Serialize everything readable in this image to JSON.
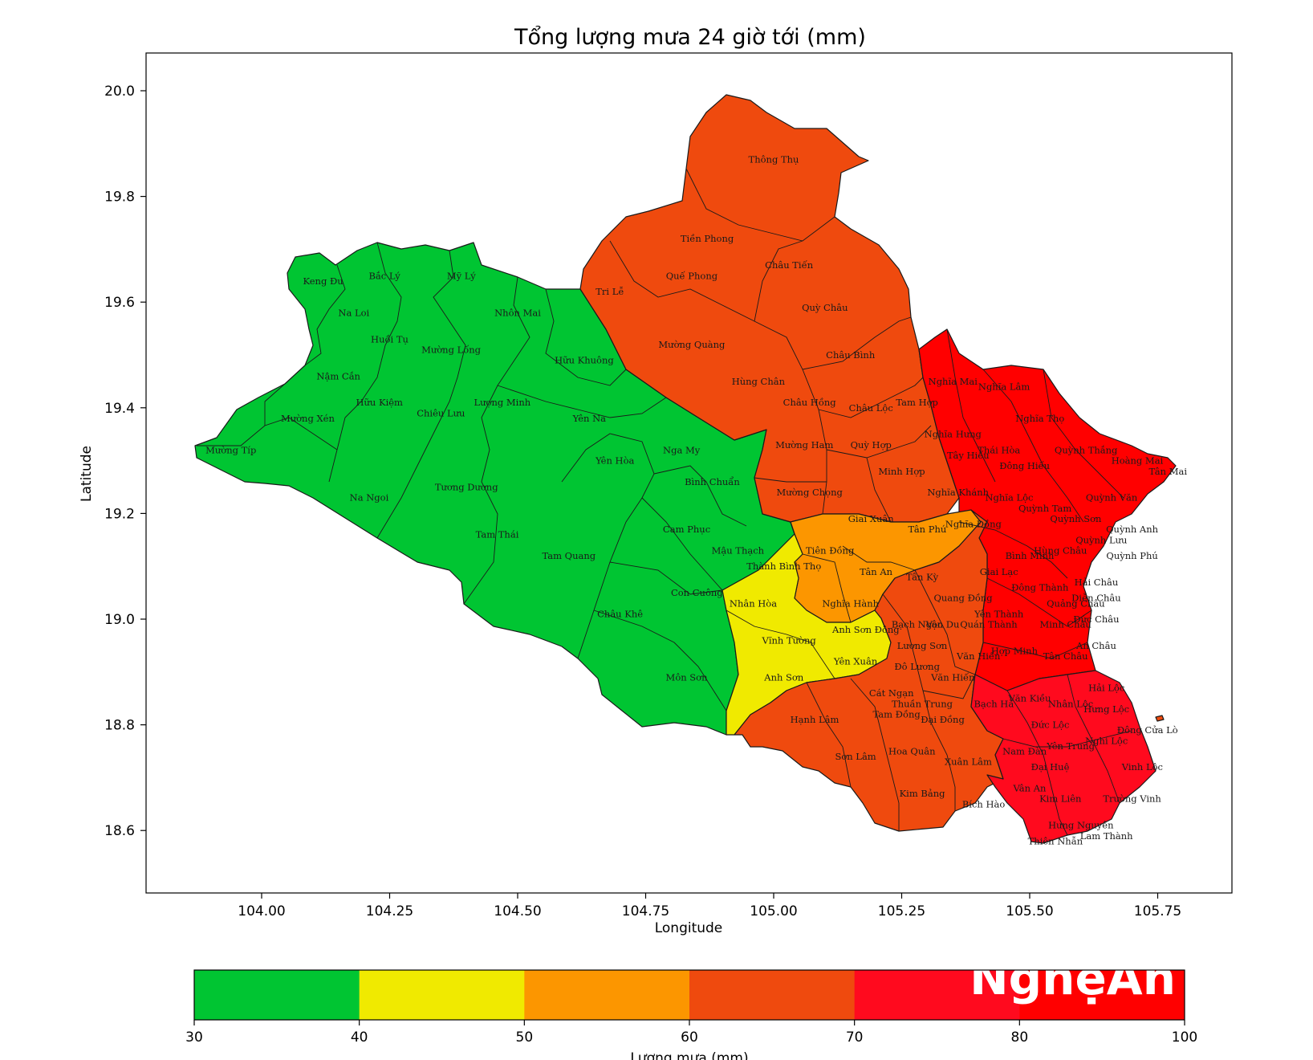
{
  "title": "Tổng lượng mưa 24 giờ tới (mm)",
  "x_axis": {
    "label": "Longitude",
    "ticks": [
      "104.00",
      "104.25",
      "104.50",
      "104.75",
      "105.00",
      "105.25",
      "105.50",
      "105.75"
    ]
  },
  "y_axis": {
    "label": "Latitude",
    "ticks": [
      "20.0",
      "19.8",
      "19.6",
      "19.4",
      "19.2",
      "19.0",
      "18.8",
      "18.6"
    ]
  },
  "colorbar": {
    "label": "Lượng mưa (mm)",
    "ticks": [
      "30",
      "40",
      "50",
      "60",
      "70",
      "80",
      "100"
    ],
    "bins": [
      {
        "range": "30-40",
        "color": "#00c532"
      },
      {
        "range": "40-50",
        "color": "#f0ea00"
      },
      {
        "range": "50-60",
        "color": "#fc9600"
      },
      {
        "range": "60-70",
        "color": "#ef4a0e"
      },
      {
        "range": "70-80",
        "color": "#ff0a1e"
      },
      {
        "range": "80-100",
        "color": "#ff0000"
      }
    ]
  },
  "region_colors": {
    "green": "#00c532",
    "yellow": "#f0ea00",
    "orange": "#fc9600",
    "darkorange": "#ef4a0e",
    "red": "#ff0a1e",
    "brightred": "#ff0000"
  },
  "watermark": "NghệAn",
  "places": [
    {
      "name": "Thông Thụ",
      "lon": 105.0,
      "lat": 19.87
    },
    {
      "name": "Tiền Phong",
      "lon": 104.87,
      "lat": 19.72
    },
    {
      "name": "Châu Tiến",
      "lon": 105.03,
      "lat": 19.67
    },
    {
      "name": "Quế Phong",
      "lon": 104.84,
      "lat": 19.65
    },
    {
      "name": "Tri Lễ",
      "lon": 104.68,
      "lat": 19.62
    },
    {
      "name": "Quỳ Châu",
      "lon": 105.1,
      "lat": 19.59
    },
    {
      "name": "Mường Quàng",
      "lon": 104.84,
      "lat": 19.52
    },
    {
      "name": "Châu Bình",
      "lon": 105.15,
      "lat": 19.5
    },
    {
      "name": "Hùng Chân",
      "lon": 104.97,
      "lat": 19.45
    },
    {
      "name": "Châu Hồng",
      "lon": 105.07,
      "lat": 19.41
    },
    {
      "name": "Châu Lộc",
      "lon": 105.19,
      "lat": 19.4
    },
    {
      "name": "Tam Hợp",
      "lon": 105.28,
      "lat": 19.41
    },
    {
      "name": "Mường Ham",
      "lon": 105.06,
      "lat": 19.33
    },
    {
      "name": "Quỳ Hợp",
      "lon": 105.19,
      "lat": 19.33
    },
    {
      "name": "Minh Hợp",
      "lon": 105.25,
      "lat": 19.28
    },
    {
      "name": "Mường Chọng",
      "lon": 105.07,
      "lat": 19.24
    },
    {
      "name": "Keng Đu",
      "lon": 104.12,
      "lat": 19.64
    },
    {
      "name": "Bắc Lý",
      "lon": 104.24,
      "lat": 19.65
    },
    {
      "name": "Mỹ Lý",
      "lon": 104.39,
      "lat": 19.65
    },
    {
      "name": "Na Loi",
      "lon": 104.18,
      "lat": 19.58
    },
    {
      "name": "Nhôn Mai",
      "lon": 104.5,
      "lat": 19.58
    },
    {
      "name": "Huồi Tụ",
      "lon": 104.25,
      "lat": 19.53
    },
    {
      "name": "Mường Lống",
      "lon": 104.37,
      "lat": 19.51
    },
    {
      "name": "Hữu Khuông",
      "lon": 104.63,
      "lat": 19.49
    },
    {
      "name": "Nậm Cắn",
      "lon": 104.15,
      "lat": 19.46
    },
    {
      "name": "Hữu Kiệm",
      "lon": 104.23,
      "lat": 19.41
    },
    {
      "name": "Lượng Minh",
      "lon": 104.47,
      "lat": 19.41
    },
    {
      "name": "Chiêu Lưu",
      "lon": 104.35,
      "lat": 19.39
    },
    {
      "name": "Mường Xén",
      "lon": 104.09,
      "lat": 19.38
    },
    {
      "name": "Yên Na",
      "lon": 104.64,
      "lat": 19.38
    },
    {
      "name": "Mường Típ",
      "lon": 103.94,
      "lat": 19.32
    },
    {
      "name": "Nga My",
      "lon": 104.82,
      "lat": 19.32
    },
    {
      "name": "Yên Hòa",
      "lon": 104.69,
      "lat": 19.3
    },
    {
      "name": "Tương Dương",
      "lon": 104.4,
      "lat": 19.25
    },
    {
      "name": "Bình Chuẩn",
      "lon": 104.88,
      "lat": 19.26
    },
    {
      "name": "Na Ngoi",
      "lon": 104.21,
      "lat": 19.23
    },
    {
      "name": "Tam Thái",
      "lon": 104.46,
      "lat": 19.16
    },
    {
      "name": "Cam Phục",
      "lon": 104.83,
      "lat": 19.17
    },
    {
      "name": "Tam Quang",
      "lon": 104.6,
      "lat": 19.12
    },
    {
      "name": "Mậu Thạch",
      "lon": 104.93,
      "lat": 19.13
    },
    {
      "name": "Con Cuông",
      "lon": 104.85,
      "lat": 19.05
    },
    {
      "name": "Châu Khê",
      "lon": 104.7,
      "lat": 19.01
    },
    {
      "name": "Môn Sơn",
      "lon": 104.83,
      "lat": 18.89
    },
    {
      "name": "Giai Xuân",
      "lon": 105.19,
      "lat": 19.19
    },
    {
      "name": "Tân Phú",
      "lon": 105.3,
      "lat": 19.17
    },
    {
      "name": "Nghĩa Đồng",
      "lon": 105.39,
      "lat": 19.18
    },
    {
      "name": "Tiên Đồng",
      "lon": 105.11,
      "lat": 19.13
    },
    {
      "name": "Thành Bình Thọ",
      "lon": 105.02,
      "lat": 19.1
    },
    {
      "name": "Tân An",
      "lon": 105.2,
      "lat": 19.09
    },
    {
      "name": "Tân Kỳ",
      "lon": 105.29,
      "lat": 19.08
    },
    {
      "name": "Nghĩa Hành",
      "lon": 105.15,
      "lat": 19.03
    },
    {
      "name": "Nhân Hòa",
      "lon": 104.96,
      "lat": 19.03
    },
    {
      "name": "Anh Sơn Đông",
      "lon": 105.18,
      "lat": 18.98
    },
    {
      "name": "Vĩnh Tường",
      "lon": 105.03,
      "lat": 18.96
    },
    {
      "name": "Yên Xuân",
      "lon": 105.16,
      "lat": 18.92
    },
    {
      "name": "Anh Sơn",
      "lon": 105.02,
      "lat": 18.89
    },
    {
      "name": "Hạnh Lâm",
      "lon": 105.08,
      "lat": 18.81
    },
    {
      "name": "Sơn Lâm",
      "lon": 105.16,
      "lat": 18.74
    },
    {
      "name": "Kim Bảng",
      "lon": 105.29,
      "lat": 18.67
    },
    {
      "name": "Bích Hào",
      "lon": 105.41,
      "lat": 18.65
    },
    {
      "name": "Hoa Quân",
      "lon": 105.27,
      "lat": 18.75
    },
    {
      "name": "Xuân Lâm",
      "lon": 105.38,
      "lat": 18.73
    },
    {
      "name": "Tam Đồng",
      "lon": 105.24,
      "lat": 18.82
    },
    {
      "name": "Đại Đồng",
      "lon": 105.33,
      "lat": 18.81
    },
    {
      "name": "Cát Ngạn",
      "lon": 105.23,
      "lat": 18.86
    },
    {
      "name": "Thuần Trung",
      "lon": 105.29,
      "lat": 18.84
    },
    {
      "name": "Bạch Hà",
      "lon": 105.43,
      "lat": 18.84
    },
    {
      "name": "Đô Lương",
      "lon": 105.28,
      "lat": 18.91
    },
    {
      "name": "Văn Hiến",
      "lon": 105.35,
      "lat": 18.89
    },
    {
      "name": "Lương Sơn",
      "lon": 105.29,
      "lat": 18.95
    },
    {
      "name": "Văn Hiến",
      "lon": 105.4,
      "lat": 18.93
    },
    {
      "name": "Bạch Ngọc",
      "lon": 105.28,
      "lat": 18.99
    },
    {
      "name": "Vân Du",
      "lon": 105.33,
      "lat": 18.99
    },
    {
      "name": "Quang Đồng",
      "lon": 105.37,
      "lat": 19.04
    },
    {
      "name": "Quán Thành",
      "lon": 105.42,
      "lat": 18.99
    },
    {
      "name": "Yên Thành",
      "lon": 105.44,
      "lat": 19.01
    },
    {
      "name": "Hợp Minh",
      "lon": 105.47,
      "lat": 18.94
    },
    {
      "name": "Giai Lạc",
      "lon": 105.44,
      "lat": 19.09
    },
    {
      "name": "Bình Minh",
      "lon": 105.5,
      "lat": 19.12
    },
    {
      "name": "Đông Thành",
      "lon": 105.52,
      "lat": 19.06
    },
    {
      "name": "Nghĩa Mai",
      "lon": 105.35,
      "lat": 19.45
    },
    {
      "name": "Nghĩa Lâm",
      "lon": 105.45,
      "lat": 19.44
    },
    {
      "name": "Nghĩa Hưng",
      "lon": 105.35,
      "lat": 19.35
    },
    {
      "name": "Nghĩa Thọ",
      "lon": 105.52,
      "lat": 19.38
    },
    {
      "name": "Tây Hiếu",
      "lon": 105.38,
      "lat": 19.31
    },
    {
      "name": "Thái Hòa",
      "lon": 105.44,
      "lat": 19.32
    },
    {
      "name": "Đông Hiếu",
      "lon": 105.49,
      "lat": 19.29
    },
    {
      "name": "Quỳnh Thắng",
      "lon": 105.61,
      "lat": 19.32
    },
    {
      "name": "Hoàng Mai",
      "lon": 105.71,
      "lat": 19.3
    },
    {
      "name": "Tân Mai",
      "lon": 105.77,
      "lat": 19.28
    },
    {
      "name": "Nghĩa Khánh",
      "lon": 105.36,
      "lat": 19.24
    },
    {
      "name": "Nghĩa Lộc",
      "lon": 105.46,
      "lat": 19.23
    },
    {
      "name": "Quỳnh Tam",
      "lon": 105.53,
      "lat": 19.21
    },
    {
      "name": "Quỳnh Văn",
      "lon": 105.66,
      "lat": 19.23
    },
    {
      "name": "Quỳnh Sơn",
      "lon": 105.59,
      "lat": 19.19
    },
    {
      "name": "Quỳnh Anh",
      "lon": 105.7,
      "lat": 19.17
    },
    {
      "name": "Quỳnh Lưu",
      "lon": 105.64,
      "lat": 19.15
    },
    {
      "name": "Quỳnh Phú",
      "lon": 105.7,
      "lat": 19.12
    },
    {
      "name": "Hùng Châu",
      "lon": 105.56,
      "lat": 19.13
    },
    {
      "name": "Hải Châu",
      "lon": 105.63,
      "lat": 19.07
    },
    {
      "name": "Diễn Châu",
      "lon": 105.63,
      "lat": 19.04
    },
    {
      "name": "Quảng Châu",
      "lon": 105.59,
      "lat": 19.03
    },
    {
      "name": "Đức Châu",
      "lon": 105.63,
      "lat": 19.0
    },
    {
      "name": "Minh Châu",
      "lon": 105.57,
      "lat": 18.99
    },
    {
      "name": "An Châu",
      "lon": 105.63,
      "lat": 18.95
    },
    {
      "name": "Tân Châu",
      "lon": 105.57,
      "lat": 18.93
    },
    {
      "name": "Hải Lộc",
      "lon": 105.65,
      "lat": 18.87
    },
    {
      "name": "Văn Kiều",
      "lon": 105.5,
      "lat": 18.85
    },
    {
      "name": "Nhân Lộc",
      "lon": 105.58,
      "lat": 18.84
    },
    {
      "name": "Hưng Lộc",
      "lon": 105.65,
      "lat": 18.83
    },
    {
      "name": "Đức Lộc",
      "lon": 105.54,
      "lat": 18.8
    },
    {
      "name": "Đông Cửa Lò",
      "lon": 105.73,
      "lat": 18.79
    },
    {
      "name": "Nam Đàn",
      "lon": 105.49,
      "lat": 18.75
    },
    {
      "name": "Yên Trung",
      "lon": 105.58,
      "lat": 18.76
    },
    {
      "name": "Nghi Lộc",
      "lon": 105.65,
      "lat": 18.77
    },
    {
      "name": "Đại Huệ",
      "lon": 105.54,
      "lat": 18.72
    },
    {
      "name": "Vinh Lộc",
      "lon": 105.72,
      "lat": 18.72
    },
    {
      "name": "Vân An",
      "lon": 105.5,
      "lat": 18.68
    },
    {
      "name": "Kim Liên",
      "lon": 105.56,
      "lat": 18.66
    },
    {
      "name": "Trường Vinh",
      "lon": 105.7,
      "lat": 18.66
    },
    {
      "name": "Hưng Nguyên",
      "lon": 105.6,
      "lat": 18.61
    },
    {
      "name": "Thiên Nhẫn",
      "lon": 105.55,
      "lat": 18.58
    },
    {
      "name": "Lam Thành",
      "lon": 105.65,
      "lat": 18.59
    }
  ]
}
